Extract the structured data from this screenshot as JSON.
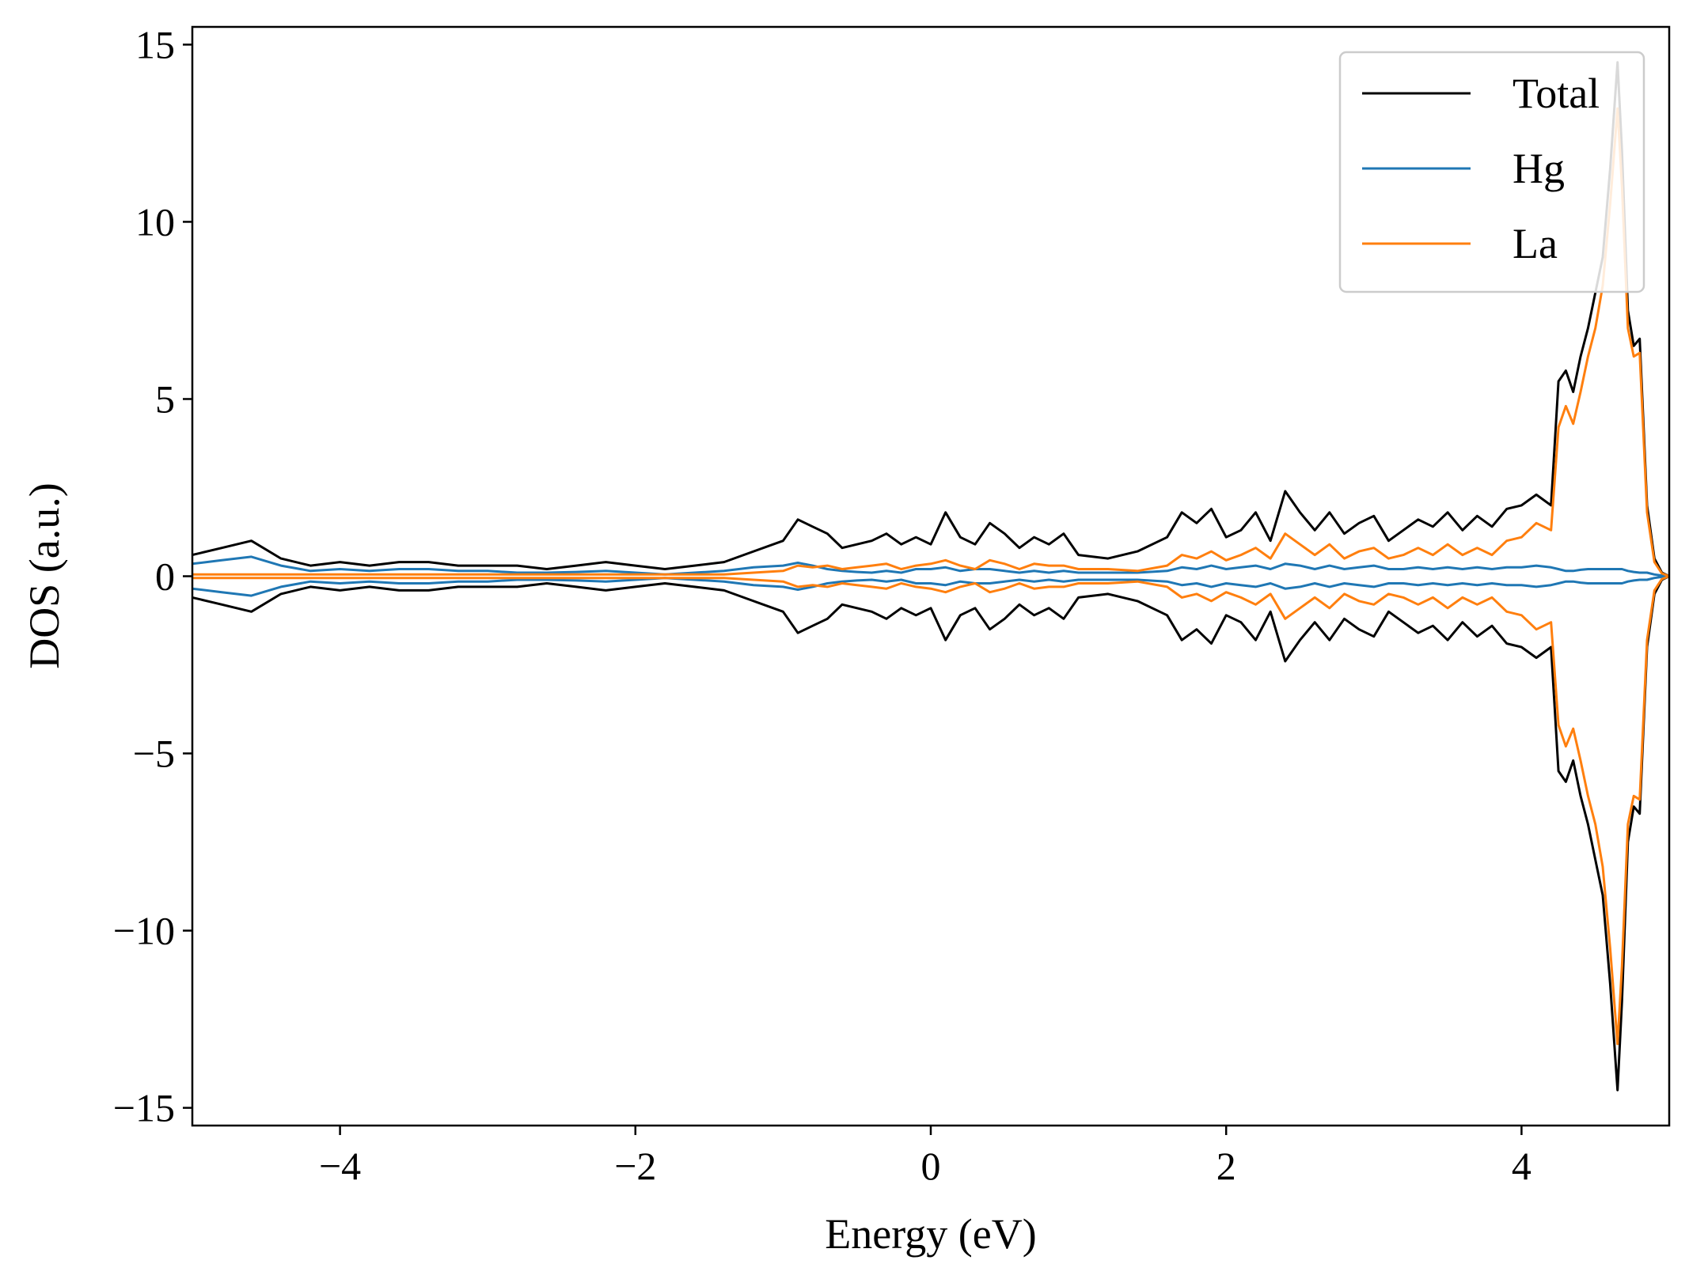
{
  "chart_data": {
    "type": "line",
    "title": "",
    "xlabel": "Energy (eV)",
    "ylabel": "DOS (a.u.)",
    "xlim": [
      -5,
      5
    ],
    "ylim": [
      -15.5,
      15.5
    ],
    "xticks": [
      -4,
      -2,
      0,
      2,
      4
    ],
    "xtick_labels": [
      "−4",
      "−2",
      "0",
      "2",
      "4"
    ],
    "yticks": [
      15,
      10,
      5,
      0,
      -5,
      -10,
      -15
    ],
    "ytick_labels": [
      "15",
      "10",
      "5",
      "0",
      "−5",
      "−10",
      "−15"
    ],
    "grid": false,
    "legend_position": "upper right",
    "spin_symmetric": true,
    "note": "Each series is drawn as spin-up (+values) and spin-down (mirrored, −values).",
    "x": [
      -5.0,
      -4.8,
      -4.6,
      -4.4,
      -4.2,
      -4.0,
      -3.8,
      -3.6,
      -3.4,
      -3.2,
      -3.0,
      -2.8,
      -2.6,
      -2.4,
      -2.2,
      -2.0,
      -1.8,
      -1.6,
      -1.4,
      -1.2,
      -1.0,
      -0.9,
      -0.8,
      -0.7,
      -0.6,
      -0.5,
      -0.4,
      -0.3,
      -0.2,
      -0.1,
      0.0,
      0.1,
      0.2,
      0.3,
      0.4,
      0.5,
      0.6,
      0.7,
      0.8,
      0.9,
      1.0,
      1.2,
      1.4,
      1.6,
      1.7,
      1.8,
      1.9,
      2.0,
      2.1,
      2.2,
      2.3,
      2.4,
      2.5,
      2.6,
      2.7,
      2.8,
      2.9,
      3.0,
      3.1,
      3.2,
      3.3,
      3.4,
      3.5,
      3.6,
      3.7,
      3.8,
      3.9,
      4.0,
      4.1,
      4.2,
      4.25,
      4.3,
      4.35,
      4.4,
      4.45,
      4.5,
      4.55,
      4.6,
      4.65,
      4.68,
      4.72,
      4.76,
      4.8,
      4.85,
      4.9,
      4.95,
      5.0
    ],
    "series": [
      {
        "name": "Total",
        "color": "#000000",
        "values": [
          0.6,
          0.8,
          1.0,
          0.5,
          0.3,
          0.4,
          0.3,
          0.4,
          0.4,
          0.3,
          0.3,
          0.3,
          0.2,
          0.3,
          0.4,
          0.3,
          0.2,
          0.3,
          0.4,
          0.7,
          1.0,
          1.6,
          1.4,
          1.2,
          0.8,
          0.9,
          1.0,
          1.2,
          0.9,
          1.1,
          0.9,
          1.8,
          1.1,
          0.9,
          1.5,
          1.2,
          0.8,
          1.1,
          0.9,
          1.2,
          0.6,
          0.5,
          0.7,
          1.1,
          1.8,
          1.5,
          1.9,
          1.1,
          1.3,
          1.8,
          1.0,
          2.4,
          1.8,
          1.3,
          1.8,
          1.2,
          1.5,
          1.7,
          1.0,
          1.3,
          1.6,
          1.4,
          1.8,
          1.3,
          1.7,
          1.4,
          1.9,
          2.0,
          2.3,
          2.0,
          5.5,
          5.8,
          5.2,
          6.2,
          7.0,
          8.0,
          9.0,
          11.5,
          14.5,
          12.0,
          7.5,
          6.5,
          6.7,
          2.0,
          0.5,
          0.1,
          0.0
        ]
      },
      {
        "name": "Hg",
        "color": "#1f77b4",
        "values": [
          0.35,
          0.45,
          0.55,
          0.3,
          0.15,
          0.2,
          0.15,
          0.2,
          0.2,
          0.15,
          0.15,
          0.1,
          0.1,
          0.12,
          0.15,
          0.1,
          0.05,
          0.1,
          0.15,
          0.25,
          0.3,
          0.38,
          0.3,
          0.2,
          0.15,
          0.12,
          0.1,
          0.15,
          0.1,
          0.2,
          0.2,
          0.25,
          0.15,
          0.2,
          0.2,
          0.15,
          0.1,
          0.15,
          0.1,
          0.15,
          0.1,
          0.1,
          0.1,
          0.15,
          0.25,
          0.2,
          0.3,
          0.2,
          0.25,
          0.3,
          0.2,
          0.35,
          0.3,
          0.2,
          0.3,
          0.2,
          0.25,
          0.3,
          0.2,
          0.2,
          0.25,
          0.2,
          0.25,
          0.2,
          0.25,
          0.2,
          0.25,
          0.25,
          0.3,
          0.25,
          0.2,
          0.15,
          0.15,
          0.18,
          0.2,
          0.2,
          0.2,
          0.2,
          0.2,
          0.2,
          0.15,
          0.12,
          0.1,
          0.1,
          0.05,
          0.02,
          0.0
        ]
      },
      {
        "name": "La",
        "color": "#ff7f0e",
        "values": [
          0.05,
          0.05,
          0.05,
          0.05,
          0.05,
          0.05,
          0.05,
          0.05,
          0.05,
          0.05,
          0.05,
          0.05,
          0.05,
          0.05,
          0.05,
          0.05,
          0.05,
          0.05,
          0.05,
          0.1,
          0.15,
          0.3,
          0.25,
          0.3,
          0.2,
          0.25,
          0.3,
          0.35,
          0.2,
          0.3,
          0.35,
          0.45,
          0.3,
          0.2,
          0.45,
          0.35,
          0.2,
          0.35,
          0.3,
          0.3,
          0.2,
          0.2,
          0.15,
          0.3,
          0.6,
          0.5,
          0.7,
          0.45,
          0.6,
          0.8,
          0.5,
          1.2,
          0.9,
          0.6,
          0.9,
          0.5,
          0.7,
          0.8,
          0.5,
          0.6,
          0.8,
          0.6,
          0.9,
          0.6,
          0.8,
          0.6,
          1.0,
          1.1,
          1.5,
          1.3,
          4.2,
          4.8,
          4.3,
          5.2,
          6.2,
          7.0,
          8.2,
          10.5,
          13.2,
          11.0,
          7.0,
          6.2,
          6.3,
          1.8,
          0.4,
          0.08,
          0.0
        ]
      }
    ]
  }
}
